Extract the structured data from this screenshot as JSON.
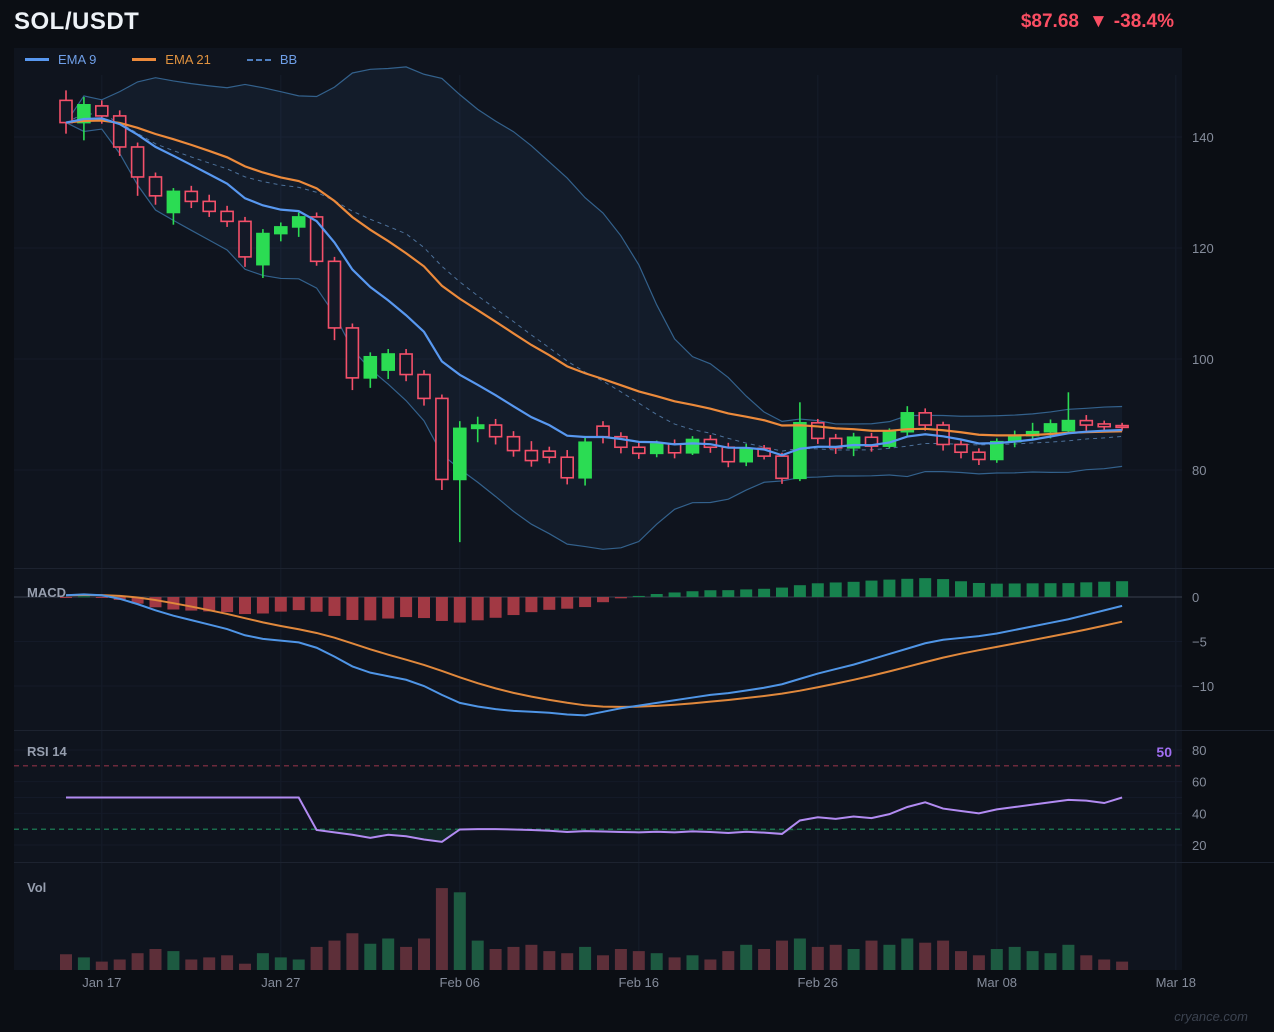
{
  "header": {
    "symbol": "SOL/USDT",
    "price": "$87.68",
    "change_icon": "▼",
    "change": "-38.4%"
  },
  "legend": [
    {
      "label": "EMA 9",
      "color": "#5898f0",
      "style": "solid"
    },
    {
      "label": "EMA 21",
      "color": "#ec8a3b",
      "style": "solid"
    },
    {
      "label": "BB",
      "color": "#4f7fc0",
      "style": "dashed"
    }
  ],
  "panes": {
    "macd": "MACD",
    "rsi": "RSI 14",
    "rsi_value": "50",
    "vol": "Vol"
  },
  "watermark": "cryance.com",
  "colors": {
    "up": "#2bdc53",
    "down": "#f4506a",
    "down_body": "#141927",
    "ema9": "#5898f0",
    "ema21": "#ec8a3b",
    "bb_line": "#33618c",
    "bb_mid": "#4c7099",
    "bb_fill": "rgba(86,140,210,0.07)",
    "macd_line": "#4f95e6",
    "signal_line": "#e0883c",
    "hist_up": "#17824e",
    "hist_down": "#a23944",
    "rsi_line": "#b28bf2",
    "rsi_ob": "#8c3246",
    "rsi_os": "#1f8a5c",
    "rsi_fill": "rgba(38,150,86,0.16)",
    "vol_up": "#1d5a41",
    "vol_down": "#5d2f39",
    "axis_text": "#858c9b",
    "grid": "#141a28",
    "vgrid": "#161d2b",
    "zero_line": "#3a414f",
    "separator": "#1d2330",
    "price_change": "#fb4e63"
  },
  "chart_data": {
    "type": "candlestick",
    "title": "SOL/USDT",
    "last_price": 87.68,
    "change_pct": -38.4,
    "x_tick_labels": [
      "Jan 17",
      "Jan 27",
      "Feb 06",
      "Feb 16",
      "Feb 26",
      "Mar 08",
      "Mar 18"
    ],
    "x_tick_indices": [
      2,
      12,
      22,
      32,
      42,
      52,
      62
    ],
    "price_ticks": [
      140,
      120,
      100,
      80
    ],
    "macd_ticks": {
      "labels": [
        "0",
        "−5",
        "−10"
      ],
      "values": [
        0,
        -5,
        -10
      ]
    },
    "rsi_ticks": [
      80,
      60,
      40,
      20
    ],
    "rsi_levels": {
      "overbought": 70,
      "oversold": 30,
      "midline": 50,
      "current": 50
    },
    "indicators": {
      "ema_fast": 9,
      "ema_slow": 21,
      "bb_period": 20,
      "bb_stddev": 2,
      "macd_signal_period": 9,
      "rsi_period": 14
    },
    "open": [
      146.6,
      142.6,
      145.6,
      143.8,
      138.2,
      132.8,
      126.4,
      130.2,
      128.4,
      126.6,
      124.8,
      117.0,
      122.6,
      123.8,
      125.6,
      117.6,
      105.6,
      96.6,
      98.0,
      100.9,
      97.2,
      92.9,
      78.3,
      87.5,
      88.1,
      86.0,
      83.5,
      83.4,
      82.3,
      78.6,
      87.9,
      86.0,
      84.1,
      83.0,
      84.7,
      83.1,
      85.5,
      84.1,
      81.5,
      83.9,
      82.5,
      78.5,
      88.5,
      85.7,
      84.0,
      85.9,
      84.3,
      86.9,
      90.3,
      88.1,
      84.6,
      83.2,
      81.9,
      85.1,
      86.2,
      86.9,
      87.1,
      88.9,
      88.3,
      88.0
    ],
    "high": [
      148.4,
      147.2,
      146.6,
      144.8,
      139.0,
      133.6,
      130.8,
      131.2,
      129.6,
      127.6,
      125.6,
      123.4,
      124.6,
      126.4,
      126.4,
      118.4,
      106.4,
      101.2,
      101.8,
      101.8,
      98.0,
      93.6,
      88.8,
      89.6,
      89.2,
      87.0,
      85.2,
      84.2,
      83.6,
      85.8,
      88.8,
      86.8,
      85.0,
      85.3,
      85.5,
      86.1,
      86.3,
      84.9,
      84.7,
      84.5,
      83.1,
      92.2,
      89.2,
      86.5,
      86.7,
      86.7,
      87.5,
      91.5,
      91.1,
      88.7,
      85.3,
      83.9,
      85.7,
      87.1,
      88.5,
      89.1,
      94.0,
      89.9,
      88.9,
      88.5
    ],
    "low": [
      140.6,
      139.4,
      142.4,
      136.6,
      129.4,
      127.8,
      124.2,
      127.2,
      125.6,
      123.8,
      116.6,
      114.6,
      121.2,
      122.0,
      116.8,
      103.4,
      94.4,
      94.8,
      96.4,
      96.0,
      91.6,
      76.4,
      67.0,
      85.0,
      84.6,
      82.4,
      80.6,
      81.2,
      77.4,
      77.2,
      84.8,
      83.0,
      82.0,
      82.3,
      82.1,
      82.7,
      83.1,
      80.5,
      80.7,
      81.9,
      77.5,
      78.0,
      84.7,
      82.9,
      82.5,
      83.3,
      83.9,
      86.1,
      87.1,
      83.5,
      82.1,
      80.9,
      81.3,
      84.1,
      85.3,
      85.7,
      86.5,
      87.1,
      86.9,
      87.1
    ],
    "close": [
      142.6,
      145.8,
      143.8,
      138.2,
      132.8,
      129.4,
      130.2,
      128.4,
      126.6,
      124.8,
      118.4,
      122.6,
      123.8,
      125.6,
      117.6,
      105.6,
      96.6,
      100.4,
      100.9,
      97.2,
      92.9,
      78.3,
      87.5,
      88.1,
      86.0,
      83.5,
      81.7,
      82.3,
      78.6,
      85.0,
      86.0,
      84.1,
      83.0,
      84.7,
      83.1,
      85.5,
      84.1,
      81.5,
      83.9,
      82.5,
      78.5,
      88.5,
      85.7,
      84.0,
      85.9,
      84.3,
      86.9,
      90.3,
      88.1,
      84.6,
      83.2,
      81.9,
      85.1,
      86.2,
      86.9,
      88.3,
      88.9,
      88.1,
      87.8,
      87.68
    ],
    "volume": [
      15,
      12,
      8,
      10,
      16,
      20,
      18,
      10,
      12,
      14,
      6,
      16,
      12,
      10,
      22,
      28,
      35,
      25,
      30,
      22,
      30,
      78,
      74,
      28,
      20,
      22,
      24,
      18,
      16,
      22,
      14,
      20,
      18,
      16,
      12,
      14,
      10,
      18,
      24,
      20,
      28,
      30,
      22,
      24,
      20,
      28,
      24,
      30,
      26,
      28,
      18,
      14,
      20,
      22,
      18,
      16,
      24,
      14,
      10,
      8
    ],
    "macd": [
      0.2,
      0.3,
      0.2,
      -0.2,
      -0.8,
      -1.5,
      -2.1,
      -2.6,
      -3.1,
      -3.6,
      -4.3,
      -4.7,
      -4.9,
      -5.1,
      -5.7,
      -6.7,
      -7.8,
      -8.5,
      -8.9,
      -9.3,
      -10.0,
      -11.0,
      -11.9,
      -12.3,
      -12.6,
      -12.8,
      -12.9,
      -13.0,
      -13.2,
      -13.3,
      -12.9,
      -12.5,
      -12.2,
      -11.9,
      -11.6,
      -11.3,
      -11.0,
      -10.8,
      -10.5,
      -10.2,
      -9.8,
      -9.2,
      -8.6,
      -8.1,
      -7.6,
      -7.0,
      -6.4,
      -5.8,
      -5.2,
      -4.8,
      -4.6,
      -4.4,
      -4.1,
      -3.7,
      -3.3,
      -2.9,
      -2.5,
      -2.0,
      -1.5,
      -1.0
    ],
    "rsi": [
      50,
      50,
      50,
      50,
      50,
      50,
      50,
      50,
      50,
      50,
      50,
      50,
      50,
      50,
      29.5,
      28,
      26.5,
      24.5,
      26.5,
      25.5,
      23.5,
      22,
      29.8,
      30,
      30,
      29.8,
      29.5,
      29,
      28.2,
      28.8,
      28.5,
      28.2,
      28,
      28.4,
      28,
      28.6,
      28.2,
      27.6,
      28.4,
      27.8,
      27,
      35.5,
      37.5,
      36.5,
      38,
      37,
      39.5,
      44,
      47,
      43,
      41.5,
      40,
      42.5,
      44,
      45.5,
      47,
      48.5,
      48,
      46.5,
      50
    ]
  }
}
